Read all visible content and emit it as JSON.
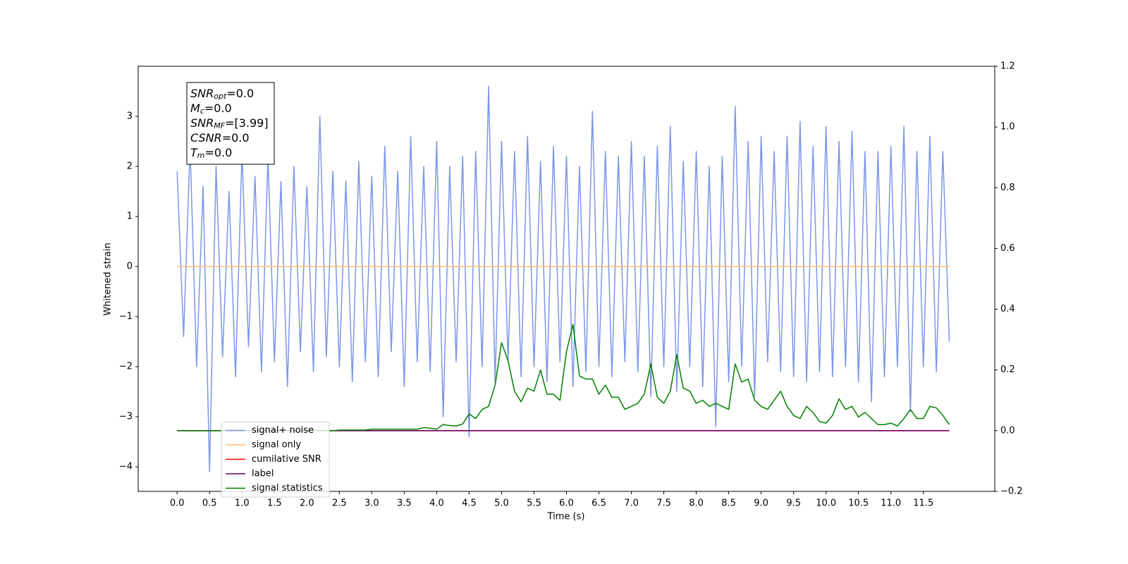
{
  "chart_data": {
    "type": "line",
    "xlabel": "Time (s)",
    "ylabel": "Whitened strain",
    "xlim": [
      -0.6,
      12.6
    ],
    "ylim": [
      -4.49,
      4.0
    ],
    "y2lim": [
      -0.2,
      1.2
    ],
    "xticks": [
      {
        "value": 0,
        "label": "0.0"
      },
      0.5,
      {
        "value": 1,
        "label": "1.0"
      },
      1.5,
      {
        "value": 2,
        "label": "2.0"
      },
      2.5,
      {
        "value": 3,
        "label": "3.0"
      },
      3.5,
      {
        "value": 4,
        "label": "4.0"
      },
      4.5,
      {
        "value": 5,
        "label": "5.0"
      },
      5.5,
      {
        "value": 6,
        "label": "6.0"
      },
      6.5,
      {
        "value": 7,
        "label": "7.0"
      },
      7.5,
      {
        "value": 8,
        "label": "8.0"
      },
      8.5,
      {
        "value": 9,
        "label": "9.0"
      },
      9.5,
      {
        "value": 10,
        "label": "10.0"
      },
      10.5,
      {
        "value": 11,
        "label": "11.0"
      },
      11.5
    ],
    "yticks": [
      {
        "value": -4,
        "label": "−4"
      },
      {
        "value": -3,
        "label": "−3"
      },
      {
        "value": -2,
        "label": "−2"
      },
      {
        "value": -1,
        "label": "−1"
      },
      0,
      1,
      2,
      3
    ],
    "y2ticks": [
      {
        "value": -0.2,
        "label": "−0.2"
      },
      {
        "value": 0,
        "label": "0.0"
      },
      0.2,
      0.4,
      0.6,
      0.8,
      {
        "value": 1,
        "label": "1.0"
      },
      1.2
    ],
    "legend": "lower left",
    "annotations": [
      {
        "main": "SNR",
        "sub": "opt",
        "text": "=0.0"
      },
      {
        "main": "M",
        "sub": "c",
        "text": "=0.0"
      },
      {
        "main": "SNR",
        "sub": "MF",
        "text": "=[3.99]"
      },
      {
        "main": "CSNR",
        "text": "=0.0"
      },
      {
        "main": "T",
        "sub": "m",
        "text": "=0.0"
      }
    ],
    "x": [
      0,
      0.1,
      0.2,
      0.3,
      0.4,
      0.5,
      0.6,
      0.7,
      0.8,
      0.9,
      1,
      1.1,
      1.2,
      1.3,
      1.4,
      1.5,
      1.6,
      1.7,
      1.8,
      1.9,
      2,
      2.1,
      2.2,
      2.3,
      2.4,
      2.5,
      2.6,
      2.7,
      2.8,
      2.9,
      3,
      3.1,
      3.2,
      3.3,
      3.4,
      3.5,
      3.6,
      3.7,
      3.8,
      3.9,
      4,
      4.1,
      4.2,
      4.3,
      4.4,
      4.5,
      4.6,
      4.7,
      4.8,
      4.9,
      5,
      5.1,
      5.2,
      5.3,
      5.4,
      5.5,
      5.6,
      5.7,
      5.8,
      5.9,
      6,
      6.1,
      6.2,
      6.3,
      6.4,
      6.5,
      6.6,
      6.7,
      6.8,
      6.9,
      7,
      7.1,
      7.2,
      7.3,
      7.4,
      7.5,
      7.6,
      7.7,
      7.8,
      7.9,
      8,
      8.1,
      8.2,
      8.3,
      8.4,
      8.5,
      8.6,
      8.7,
      8.8,
      8.9,
      9,
      9.1,
      9.2,
      9.3,
      9.4,
      9.5,
      9.6,
      9.7,
      9.8,
      9.9,
      10,
      10.1,
      10.2,
      10.3,
      10.4,
      10.5,
      10.6,
      10.7,
      10.8,
      10.9,
      11,
      11.1,
      11.2,
      11.3,
      11.4,
      11.5,
      11.6,
      11.7,
      11.8,
      11.9
    ],
    "series": [
      {
        "name": "signal+ noise",
        "color": "#7b96e8",
        "values": [
          1.9,
          -1.4,
          2.4,
          -2.0,
          1.6,
          -4.1,
          2.0,
          -1.8,
          1.5,
          -2.2,
          2.3,
          -1.6,
          1.8,
          -2.1,
          2.2,
          -1.9,
          1.7,
          -2.4,
          2.0,
          -1.7,
          1.6,
          -2.1,
          3.0,
          -1.8,
          1.9,
          -2.0,
          1.7,
          -2.3,
          2.1,
          -1.9,
          1.8,
          -2.2,
          2.4,
          -1.7,
          1.9,
          -2.4,
          2.6,
          -1.9,
          2.0,
          -2.1,
          2.5,
          -3.0,
          2.0,
          -1.9,
          2.2,
          -3.4,
          2.3,
          -2.0,
          3.6,
          -2.3,
          2.5,
          -1.9,
          2.3,
          -2.2,
          2.6,
          -2.0,
          2.1,
          -2.3,
          2.4,
          -1.9,
          2.2,
          -2.4,
          2.0,
          -2.1,
          3.1,
          -2.0,
          2.3,
          -2.2,
          2.2,
          -1.9,
          2.5,
          -2.1,
          2.2,
          -2.6,
          2.4,
          -2.0,
          2.8,
          -2.5,
          2.1,
          -2.0,
          2.3,
          -2.4,
          2.0,
          -3.2,
          2.2,
          -2.3,
          3.2,
          -2.0,
          2.5,
          -2.6,
          2.6,
          -1.9,
          2.3,
          -2.1,
          2.6,
          -2.2,
          2.9,
          -2.3,
          2.4,
          -2.1,
          2.8,
          -2.2,
          2.5,
          -2.0,
          2.7,
          -2.3,
          2.3,
          -2.7,
          2.3,
          -2.2,
          2.4,
          -2.0,
          2.8,
          -2.9,
          2.3,
          -2.0,
          2.6,
          -2.1,
          2.3,
          -1.5
        ]
      },
      {
        "name": "signal only",
        "color": "#ffbf66",
        "values": [
          0,
          0,
          0,
          0,
          0,
          0,
          0,
          0,
          0,
          0,
          0,
          0,
          0,
          0,
          0,
          0,
          0,
          0,
          0,
          0,
          0,
          0,
          0,
          0,
          0,
          0,
          0,
          0,
          0,
          0,
          0,
          0,
          0,
          0,
          0,
          0,
          0,
          0,
          0,
          0,
          0,
          0,
          0,
          0,
          0,
          0,
          0,
          0,
          0,
          0,
          0,
          0,
          0,
          0,
          0,
          0,
          0,
          0,
          0,
          0,
          0,
          0,
          0,
          0,
          0,
          0,
          0,
          0,
          0,
          0,
          0,
          0,
          0,
          0,
          0,
          0,
          0,
          0,
          0,
          0,
          0,
          0,
          0,
          0,
          0,
          0,
          0,
          0,
          0,
          0,
          0,
          0,
          0,
          0,
          0,
          0,
          0,
          0,
          0,
          0,
          0,
          0,
          0,
          0,
          0,
          0,
          0,
          0,
          0,
          0,
          0,
          0,
          0,
          0,
          0,
          0,
          0,
          0,
          0,
          0
        ]
      },
      {
        "name": "cumilative SNR",
        "color": "#ff0000",
        "axis": "y2",
        "values": [
          0,
          0,
          0,
          0,
          0,
          0,
          0,
          0,
          0,
          0,
          0,
          0,
          0,
          0,
          0,
          0,
          0,
          0,
          0,
          0,
          0,
          0,
          0,
          0,
          0,
          0,
          0,
          0,
          0,
          0,
          0,
          0,
          0,
          0,
          0,
          0,
          0,
          0,
          0,
          0,
          0,
          0,
          0,
          0,
          0,
          0,
          0,
          0,
          0,
          0,
          0,
          0,
          0,
          0,
          0,
          0,
          0,
          0,
          0,
          0,
          0,
          0,
          0,
          0,
          0,
          0,
          0,
          0,
          0,
          0,
          0,
          0,
          0,
          0,
          0,
          0,
          0,
          0,
          0,
          0,
          0,
          0,
          0,
          0,
          0,
          0,
          0,
          0,
          0,
          0,
          0,
          0,
          0,
          0,
          0,
          0,
          0,
          0,
          0,
          0,
          0,
          0,
          0,
          0,
          0,
          0,
          0,
          0,
          0,
          0,
          0,
          0,
          0,
          0,
          0,
          0,
          0,
          0,
          0,
          0
        ]
      },
      {
        "name": "label",
        "color": "#660066",
        "axis": "y2",
        "values": [
          0,
          0,
          0,
          0,
          0,
          0,
          0,
          0,
          0,
          0,
          0,
          0,
          0,
          0,
          0,
          0,
          0,
          0,
          0,
          0,
          0,
          0,
          0,
          0,
          0,
          0,
          0,
          0,
          0,
          0,
          0,
          0,
          0,
          0,
          0,
          0,
          0,
          0,
          0,
          0,
          0,
          0,
          0,
          0,
          0,
          0,
          0,
          0,
          0,
          0,
          0,
          0,
          0,
          0,
          0,
          0,
          0,
          0,
          0,
          0,
          0,
          0,
          0,
          0,
          0,
          0,
          0,
          0,
          0,
          0,
          0,
          0,
          0,
          0,
          0,
          0,
          0,
          0,
          0,
          0,
          0,
          0,
          0,
          0,
          0,
          0,
          0,
          0,
          0,
          0,
          0,
          0,
          0,
          0,
          0,
          0,
          0,
          0,
          0,
          0,
          0,
          0,
          0,
          0,
          0,
          0,
          0,
          0,
          0,
          0,
          0,
          0,
          0,
          0,
          0,
          0,
          0,
          0,
          0,
          0
        ]
      },
      {
        "name": "signal statistics",
        "color": "#008000",
        "axis": "y2",
        "values": [
          0,
          0,
          0,
          0,
          0,
          0,
          0,
          0,
          0,
          0,
          0,
          0,
          0,
          0,
          0,
          0,
          0,
          0,
          0,
          0,
          0,
          0,
          0,
          0,
          0,
          0.002,
          0.002,
          0.002,
          0.002,
          0.002,
          0.005,
          0.005,
          0.005,
          0.005,
          0.005,
          0.005,
          0.005,
          0.005,
          0.01,
          0.008,
          0.005,
          0.02,
          0.017,
          0.015,
          0.022,
          0.055,
          0.04,
          0.07,
          0.08,
          0.15,
          0.29,
          0.23,
          0.13,
          0.095,
          0.14,
          0.13,
          0.2,
          0.12,
          0.12,
          0.1,
          0.26,
          0.35,
          0.18,
          0.17,
          0.17,
          0.12,
          0.15,
          0.11,
          0.11,
          0.07,
          0.08,
          0.09,
          0.12,
          0.22,
          0.11,
          0.09,
          0.13,
          0.25,
          0.14,
          0.13,
          0.09,
          0.1,
          0.08,
          0.09,
          0.08,
          0.07,
          0.22,
          0.16,
          0.17,
          0.1,
          0.08,
          0.07,
          0.1,
          0.13,
          0.08,
          0.05,
          0.04,
          0.08,
          0.06,
          0.03,
          0.025,
          0.05,
          0.105,
          0.07,
          0.08,
          0.045,
          0.06,
          0.04,
          0.02,
          0.02,
          0.025,
          0.015,
          0.04,
          0.07,
          0.04,
          0.04,
          0.08,
          0.075,
          0.05,
          0.02
        ]
      }
    ]
  }
}
